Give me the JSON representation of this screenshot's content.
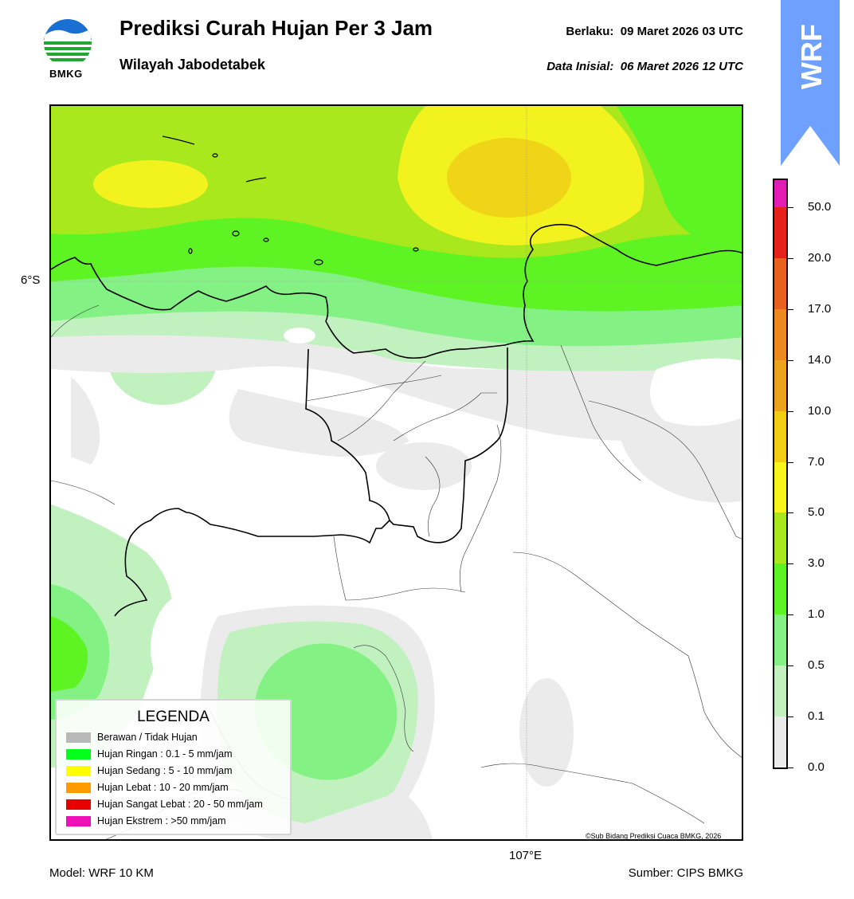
{
  "header": {
    "title": "Prediksi Curah Hujan Per 3 Jam",
    "subtitle": "Wilayah Jabodetabek",
    "valid_label": "Berlaku:",
    "valid_value": "09 Maret 2026 03 UTC",
    "init_label": "Data Inisial:",
    "init_value": "06 Maret 2026 12 UTC"
  },
  "logo": {
    "text": "BMKG",
    "icon": "bmkg-logo-icon"
  },
  "badge": {
    "text": "WRF",
    "color": "#6ea1ff"
  },
  "map": {
    "lat_label": "6°S",
    "lon_label": "107°E",
    "credit": "©Sub Bidang Prediksi Cuaca BMKG, 2026"
  },
  "legend": {
    "title": "LEGENDA",
    "items": [
      {
        "label": "Berawan / Tidak Hujan",
        "color": "#b9b9b9"
      },
      {
        "label": "Hujan Ringan : 0.1 - 5 mm/jam",
        "color": "#00ff1a"
      },
      {
        "label": "Hujan Sedang : 5 - 10 mm/jam",
        "color": "#ffff00"
      },
      {
        "label": "Hujan Lebat : 10 - 20 mm/jam",
        "color": "#ff9b00"
      },
      {
        "label": "Hujan Sangat Lebat : 20 - 50 mm/jam",
        "color": "#e80000"
      },
      {
        "label": "Hujan Ekstrem : >50 mm/jam",
        "color": "#ee11b8"
      }
    ]
  },
  "colorbar": {
    "ticks": [
      "50.0",
      "20.0",
      "17.0",
      "14.0",
      "10.0",
      "7.0",
      "5.0",
      "3.0",
      "1.0",
      "0.5",
      "0.1",
      "0.0"
    ],
    "colors_top_to_bottom": [
      "#e31cb3",
      "#e52119",
      "#e8611e",
      "#ed8a1f",
      "#eda41d",
      "#f2ce12",
      "#f7f51c",
      "#a8e81c",
      "#5ef423",
      "#84f184",
      "#c0f1bf",
      "#ebebeb"
    ]
  },
  "footer": {
    "model": "Model: WRF 10 KM",
    "source": "Sumber: CIPS BMKG"
  }
}
